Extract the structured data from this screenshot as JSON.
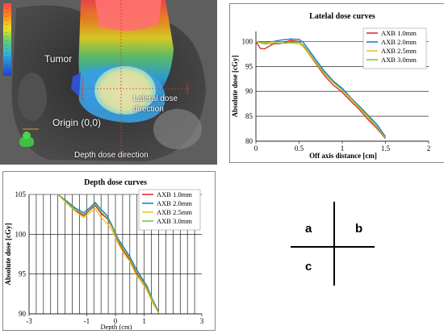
{
  "ct_image": {
    "labels": {
      "tumor": "Tumor",
      "lateral": "Lateral dose direction",
      "origin": "Origin (0,0)",
      "depth": "Depth dose direction"
    }
  },
  "quadrants": {
    "a": "a",
    "b": "b",
    "c": "c"
  },
  "chart_data": [
    {
      "type": "line",
      "title": "Latelal dose curves",
      "xlabel": "Off axis distance [cm]",
      "ylabel": "Absolute dose [cGy]",
      "xlim": [
        0,
        2
      ],
      "ylim": [
        80,
        102
      ],
      "xticks": [
        "0",
        "0.5",
        "1",
        "1.5",
        "2"
      ],
      "yticks": [
        "80",
        "85",
        "90",
        "95",
        "100"
      ],
      "grid": "y-major",
      "legend": "top-right",
      "series": [
        {
          "name": "AXB 1.0mm",
          "color": "#e02020",
          "x": [
            0,
            0.05,
            0.1,
            0.2,
            0.3,
            0.4,
            0.5,
            0.55,
            0.6,
            0.7,
            0.8,
            0.9,
            1.0,
            1.1,
            1.2,
            1.3,
            1.4,
            1.5
          ],
          "y": [
            100,
            98.6,
            98.5,
            99.5,
            99.6,
            100.2,
            100.0,
            99.2,
            97.8,
            95.4,
            93.0,
            91.2,
            89.8,
            88.0,
            86.3,
            84.3,
            82.6,
            80.5
          ]
        },
        {
          "name": "AXB 2.0mm",
          "color": "#1f6fd0",
          "x": [
            0,
            0.1,
            0.2,
            0.3,
            0.4,
            0.5,
            0.55,
            0.6,
            0.7,
            0.8,
            0.9,
            1.0,
            1.1,
            1.2,
            1.3,
            1.4,
            1.5
          ],
          "y": [
            100,
            99.8,
            100.0,
            100.3,
            100.5,
            100.4,
            99.8,
            98.6,
            96.2,
            93.9,
            92.0,
            90.6,
            88.7,
            87.0,
            85.2,
            83.4,
            80.9
          ]
        },
        {
          "name": "AXB 2.5mm",
          "color": "#e8c020",
          "x": [
            0,
            0.1,
            0.2,
            0.3,
            0.4,
            0.5,
            0.55,
            0.6,
            0.7,
            0.8,
            0.9,
            1.0,
            1.1,
            1.2,
            1.3,
            1.4,
            1.5
          ],
          "y": [
            100,
            99.7,
            99.9,
            99.6,
            99.7,
            99.5,
            98.9,
            97.8,
            95.6,
            93.4,
            91.7,
            90.2,
            88.4,
            86.6,
            84.6,
            82.9,
            80.6
          ]
        },
        {
          "name": "AXB 3.0mm",
          "color": "#70c040",
          "x": [
            0,
            0.1,
            0.2,
            0.3,
            0.4,
            0.5,
            0.55,
            0.6,
            0.7,
            0.8,
            0.9,
            1.0,
            1.1,
            1.2,
            1.3,
            1.4,
            1.5
          ],
          "y": [
            100,
            99.5,
            99.6,
            99.7,
            99.8,
            99.8,
            99.3,
            98.2,
            95.8,
            93.6,
            91.8,
            90.3,
            88.6,
            86.8,
            84.9,
            83.0,
            80.7
          ]
        }
      ]
    },
    {
      "type": "line",
      "title": "Depth dose curves",
      "xlabel": "Depth (cm)",
      "ylabel": "Absolute dose [cGy]",
      "xlim": [
        -3,
        3
      ],
      "ylim": [
        90,
        105
      ],
      "xticks": [
        "-3",
        "-1",
        "0",
        "1",
        "3"
      ],
      "yticks": [
        "90",
        "95",
        "100",
        "105"
      ],
      "grid": "both",
      "legend": "top-right",
      "series": [
        {
          "name": "AXB 1.0mm",
          "color": "#e02020",
          "x": [
            -2.0,
            -1.7,
            -1.4,
            -1.1,
            -0.9,
            -0.7,
            -0.5,
            -0.3,
            -0.1,
            0.1,
            0.3,
            0.5,
            0.7,
            0.9,
            1.1,
            1.3,
            1.5
          ],
          "y": [
            105,
            104.0,
            103.0,
            102.3,
            103.0,
            103.6,
            102.6,
            102.0,
            100.8,
            99.0,
            97.8,
            96.8,
            95.2,
            94.3,
            93.2,
            91.5,
            90.2
          ]
        },
        {
          "name": "AXB 2.0mm",
          "color": "#1f6fd0",
          "x": [
            -2.0,
            -1.7,
            -1.4,
            -1.1,
            -0.9,
            -0.7,
            -0.5,
            -0.3,
            -0.1,
            0.1,
            0.3,
            0.5,
            0.7,
            0.9,
            1.1,
            1.3,
            1.5
          ],
          "y": [
            105,
            104.2,
            103.3,
            102.7,
            103.3,
            104.0,
            103.1,
            102.4,
            101.0,
            99.4,
            98.3,
            97.2,
            95.8,
            94.6,
            93.5,
            91.7,
            90.3
          ]
        },
        {
          "name": "AXB 2.5mm",
          "color": "#e8c020",
          "x": [
            -2.0,
            -1.7,
            -1.4,
            -1.1,
            -0.9,
            -0.7,
            -0.5,
            -0.3,
            -0.1,
            0.1,
            0.3,
            0.5,
            0.7,
            0.9,
            1.1,
            1.3,
            1.5
          ],
          "y": [
            105,
            103.9,
            102.9,
            102.1,
            102.7,
            103.2,
            102.1,
            101.4,
            100.4,
            98.8,
            97.5,
            96.6,
            95.0,
            94.0,
            92.9,
            91.3,
            90.1
          ]
        },
        {
          "name": "AXB 3.0mm",
          "color": "#70c040",
          "x": [
            -2.0,
            -1.7,
            -1.4,
            -1.1,
            -0.9,
            -0.7,
            -0.5,
            -0.3,
            -0.1,
            0.1,
            0.3,
            0.5,
            0.7,
            0.9,
            1.1,
            1.3,
            1.5
          ],
          "y": [
            105,
            104.1,
            103.1,
            102.5,
            103.1,
            103.8,
            102.8,
            102.1,
            100.9,
            99.2,
            98.0,
            97.0,
            95.5,
            94.4,
            93.3,
            91.6,
            90.2
          ]
        }
      ]
    }
  ]
}
